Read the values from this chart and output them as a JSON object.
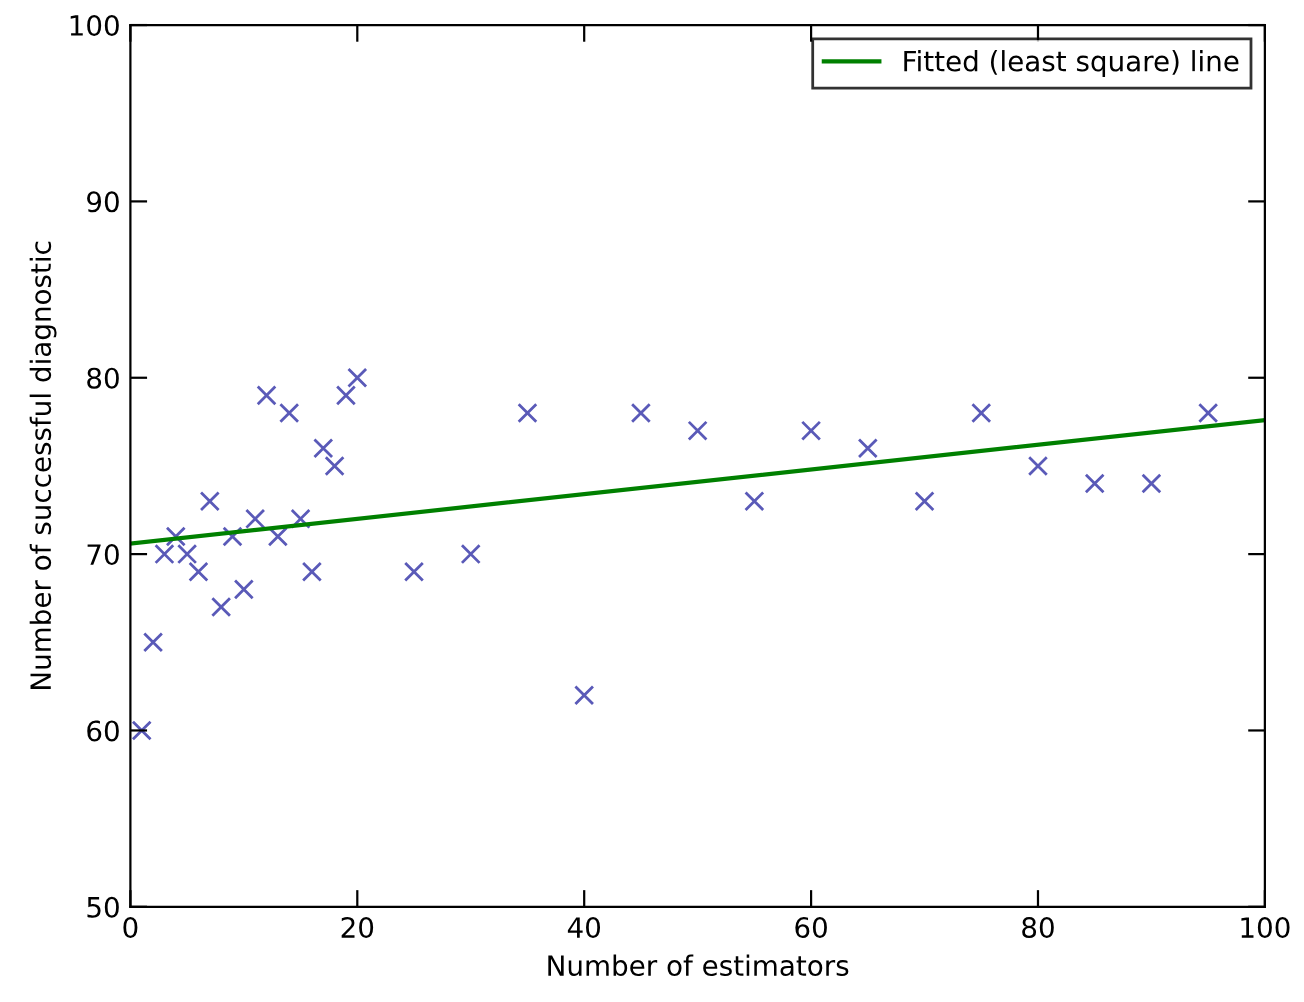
{
  "chart_data": {
    "type": "scatter",
    "xlabel": "Number of estimators",
    "ylabel": "Number of successful diagnostic",
    "xlim": [
      0,
      100
    ],
    "ylim": [
      50,
      100
    ],
    "xticks": [
      0,
      20,
      40,
      60,
      80,
      100
    ],
    "yticks": [
      50,
      60,
      70,
      80,
      90,
      100
    ],
    "grid": false,
    "legend": "top right",
    "series": [
      {
        "marker": "cross",
        "color": "#5a5ab8",
        "x": [
          1,
          2,
          3,
          4,
          5,
          6,
          7,
          8,
          9,
          10,
          11,
          12,
          13,
          14,
          15,
          16,
          17,
          18,
          19,
          20,
          25,
          30,
          35,
          40,
          45,
          50,
          55,
          60,
          65,
          70,
          75,
          80,
          85,
          90,
          95
        ],
        "values": [
          60,
          65,
          70,
          71,
          70,
          69,
          73,
          67,
          71,
          68,
          72,
          79,
          71,
          78,
          72,
          69,
          76,
          75,
          79,
          80,
          69,
          70,
          78,
          62,
          78,
          77,
          73,
          77,
          76,
          73,
          78,
          75,
          74,
          74,
          78
        ]
      },
      {
        "type": "line",
        "name": "Fitted (least square) line",
        "color": "#008000",
        "line_style": "solid",
        "marker": "none",
        "x": [
          0,
          100
        ],
        "values": [
          70.6,
          77.6
        ]
      }
    ]
  }
}
